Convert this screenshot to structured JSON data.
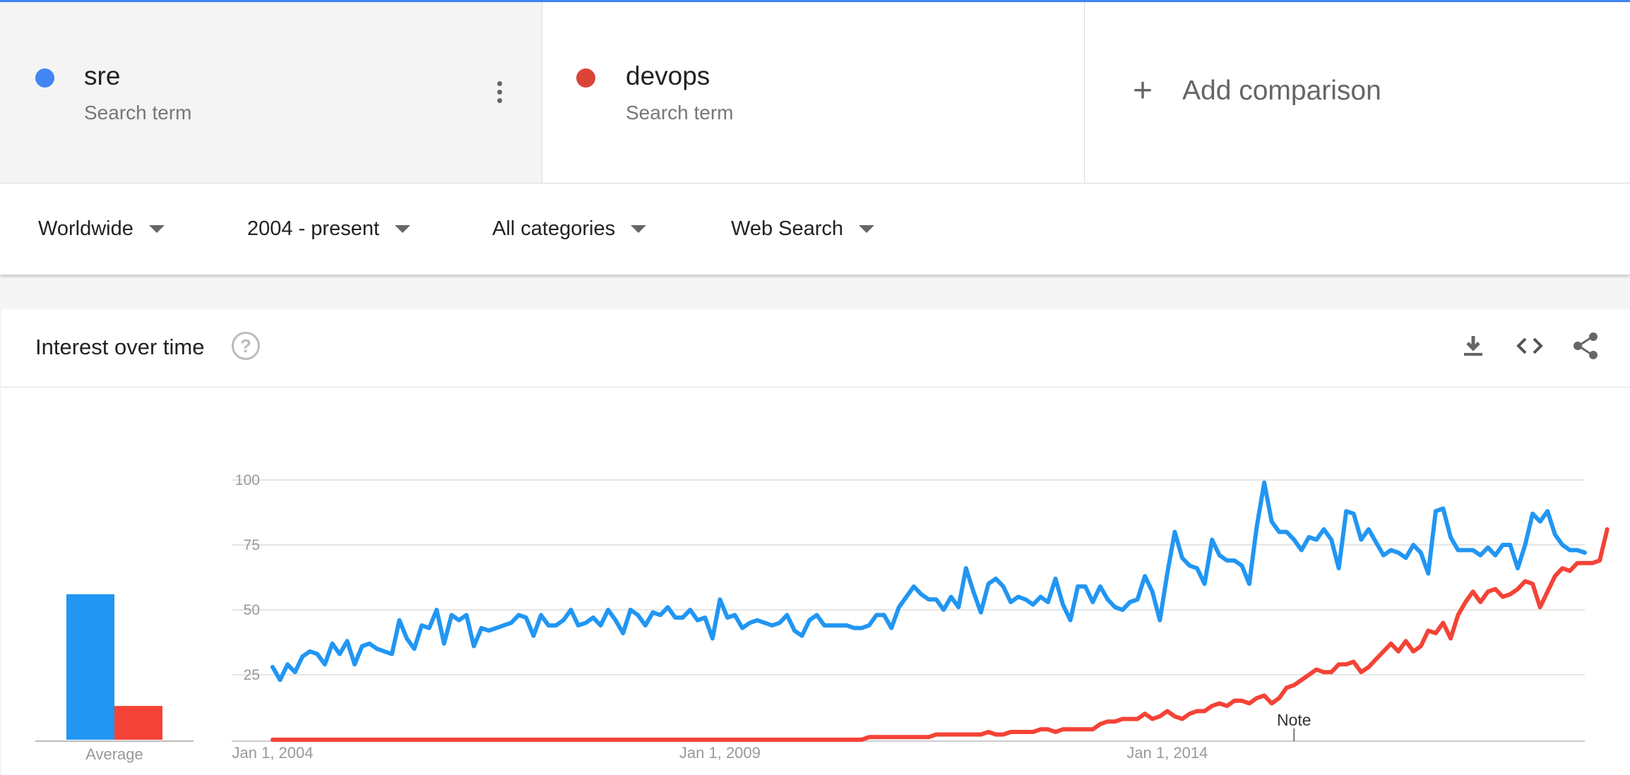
{
  "terms": [
    {
      "name": "sre",
      "sub": "Search term",
      "color": "#4285f4"
    },
    {
      "name": "devops",
      "sub": "Search term",
      "color": "#db4437"
    }
  ],
  "add_comparison": "Add comparison",
  "filters": {
    "region": "Worldwide",
    "time": "2004 - present",
    "category": "All categories",
    "property": "Web Search"
  },
  "panel": {
    "title": "Interest over time",
    "help": "?",
    "icons": [
      "download-icon",
      "embed-code-icon",
      "share-icon"
    ]
  },
  "chart_data": {
    "type": "line",
    "xlabel": "",
    "ylabel": "",
    "ylim": [
      0,
      100
    ],
    "yticks": [
      25,
      50,
      75,
      100
    ],
    "x_start": "2004-01",
    "x_step": "month",
    "xtick_labels": [
      "Jan 1, 2004",
      "Jan 1, 2009",
      "Jan 1, 2014"
    ],
    "xtick_months": [
      0,
      60,
      120
    ],
    "grid": true,
    "note": {
      "label": "Note",
      "month": 137
    },
    "average": {
      "label": "Average",
      "series": [
        {
          "name": "sre",
          "value": 56,
          "color": "#2196f3"
        },
        {
          "name": "devops",
          "value": 13,
          "color": "#f44336"
        }
      ]
    },
    "series": [
      {
        "name": "sre",
        "color": "#2196f3",
        "values": [
          28,
          23,
          29,
          26,
          32,
          34,
          33,
          29,
          37,
          33,
          38,
          29,
          36,
          37,
          35,
          34,
          33,
          46,
          39,
          35,
          44,
          43,
          50,
          37,
          48,
          46,
          48,
          36,
          43,
          42,
          43,
          44,
          45,
          48,
          47,
          40,
          48,
          44,
          44,
          46,
          50,
          44,
          45,
          47,
          44,
          50,
          46,
          41,
          50,
          48,
          44,
          49,
          48,
          51,
          47,
          47,
          50,
          46,
          47,
          39,
          54,
          47,
          48,
          43,
          45,
          46,
          45,
          44,
          45,
          48,
          42,
          40,
          46,
          48,
          44,
          44,
          44,
          44,
          43,
          43,
          44,
          48,
          48,
          43,
          51,
          55,
          59,
          56,
          54,
          54,
          50,
          55,
          51,
          66,
          57,
          49,
          60,
          62,
          59,
          53,
          55,
          54,
          52,
          55,
          53,
          62,
          52,
          46,
          59,
          59,
          53,
          59,
          54,
          51,
          50,
          53,
          54,
          63,
          57,
          46,
          64,
          80,
          70,
          67,
          66,
          60,
          77,
          71,
          69,
          69,
          67,
          60,
          82,
          99,
          84,
          80,
          80,
          77,
          73,
          78,
          77,
          81,
          77,
          66,
          88,
          87,
          77,
          81,
          76,
          71,
          73,
          72,
          70,
          75,
          72,
          64,
          88,
          89,
          78,
          73,
          73,
          73,
          71,
          74,
          71,
          75,
          75,
          66,
          75,
          87,
          84,
          88,
          79,
          75,
          73,
          73,
          72
        ]
      },
      {
        "name": "devops",
        "color": "#f44336",
        "values": [
          0,
          0,
          0,
          0,
          0,
          0,
          0,
          0,
          0,
          0,
          0,
          0,
          0,
          0,
          0,
          0,
          0,
          0,
          0,
          0,
          0,
          0,
          0,
          0,
          0,
          0,
          0,
          0,
          0,
          0,
          0,
          0,
          0,
          0,
          0,
          0,
          0,
          0,
          0,
          0,
          0,
          0,
          0,
          0,
          0,
          0,
          0,
          0,
          0,
          0,
          0,
          0,
          0,
          0,
          0,
          0,
          0,
          0,
          0,
          0,
          0,
          0,
          0,
          0,
          0,
          0,
          0,
          0,
          0,
          0,
          0,
          0,
          0,
          0,
          0,
          0,
          0,
          0,
          0,
          0,
          1,
          1,
          1,
          1,
          1,
          1,
          1,
          1,
          1,
          2,
          2,
          2,
          2,
          2,
          2,
          2,
          3,
          2,
          2,
          3,
          3,
          3,
          3,
          4,
          4,
          3,
          4,
          4,
          4,
          4,
          4,
          6,
          7,
          7,
          8,
          8,
          8,
          10,
          8,
          9,
          11,
          9,
          8,
          10,
          11,
          11,
          13,
          14,
          13,
          15,
          15,
          14,
          16,
          17,
          14,
          16,
          20,
          21,
          23,
          25,
          27,
          26,
          26,
          29,
          29,
          30,
          26,
          28,
          31,
          34,
          37,
          34,
          38,
          34,
          36,
          42,
          41,
          45,
          39,
          48,
          53,
          57,
          53,
          57,
          58,
          55,
          56,
          58,
          61,
          60,
          51,
          57,
          63,
          66,
          65,
          68,
          68,
          68,
          69,
          81
        ]
      }
    ]
  }
}
